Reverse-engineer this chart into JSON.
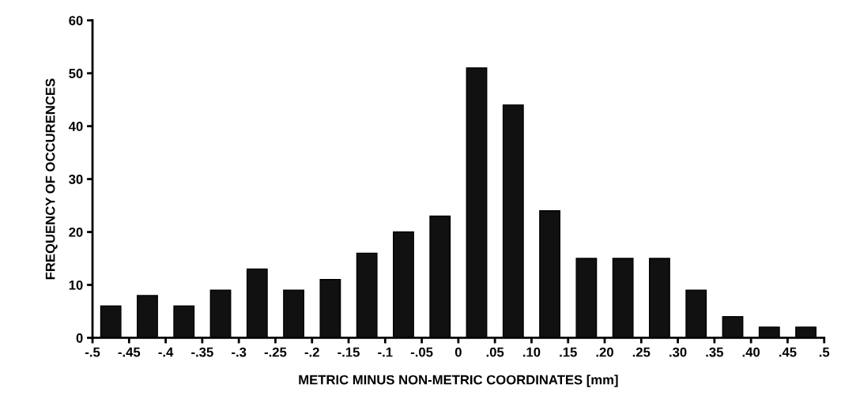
{
  "chart_data": {
    "type": "histogram",
    "xlabel": "METRIC MINUS NON-METRIC COORDINATES [mm]",
    "ylabel": "FREQUENCY OF OCCURENCES",
    "bins": [
      -0.5,
      -0.45,
      -0.4,
      -0.35,
      -0.3,
      -0.25,
      -0.2,
      -0.15,
      -0.1,
      -0.05,
      0,
      0.05,
      0.1,
      0.15,
      0.2,
      0.25,
      0.3,
      0.35,
      0.4,
      0.45,
      0.5
    ],
    "values": [
      6,
      8,
      6,
      9,
      13,
      9,
      11,
      16,
      20,
      23,
      51,
      44,
      24,
      15,
      15,
      15,
      9,
      4,
      2,
      2
    ],
    "color": "#111111",
    "xlim": [
      -0.5,
      0.5
    ],
    "xticks": [
      {
        "value": -0.5,
        "label": "-.5"
      },
      {
        "value": -0.45,
        "label": "-.45"
      },
      {
        "value": -0.4,
        "label": "-.4"
      },
      {
        "value": -0.35,
        "label": "-.35"
      },
      {
        "value": -0.3,
        "label": "-.3"
      },
      {
        "value": -0.25,
        "label": "-.25"
      },
      {
        "value": -0.2,
        "label": "-.2"
      },
      {
        "value": -0.15,
        "label": "-.15"
      },
      {
        "value": -0.1,
        "label": "-.1"
      },
      {
        "value": -0.05,
        "label": "-.05"
      },
      0,
      {
        "value": 0.05,
        "label": ".05"
      },
      {
        "value": 0.1,
        "label": ".10"
      },
      {
        "value": 0.15,
        "label": ".15"
      },
      {
        "value": 0.2,
        "label": ".20"
      },
      {
        "value": 0.25,
        "label": ".25"
      },
      {
        "value": 0.3,
        "label": ".30"
      },
      {
        "value": 0.35,
        "label": ".35"
      },
      {
        "value": 0.4,
        "label": ".40"
      },
      {
        "value": 0.45,
        "label": ".45"
      },
      {
        "value": 0.5,
        "label": ".5"
      }
    ],
    "ylim": [
      0,
      60
    ],
    "yticks": [
      0,
      10,
      20,
      30,
      40,
      50,
      60
    ],
    "grid": false
  }
}
